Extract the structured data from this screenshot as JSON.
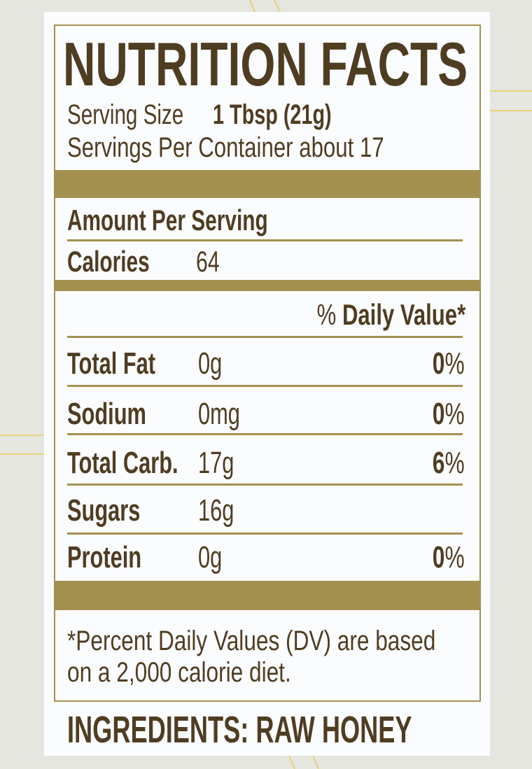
{
  "colors": {
    "text": "#4f3d22",
    "accent": "#a39050",
    "background": "#e6e6e0",
    "panel": "#fbfcfe",
    "decor_lines": "#e8d17a"
  },
  "title": "NUTRITION FACTS",
  "serving": {
    "size_label": "Serving Size",
    "size_value": "1 Tbsp (21g)",
    "per_container": "Servings Per Container about 17"
  },
  "amount_per_serving": "Amount Per Serving",
  "calories": {
    "label": "Calories",
    "value": "64"
  },
  "daily_value_header": {
    "percent": "%",
    "label": "Daily Value*"
  },
  "nutrients": [
    {
      "label": "Total Fat",
      "amount": "0g",
      "dv": "0",
      "pct": "%"
    },
    {
      "label": "Sodium",
      "amount": "0mg",
      "dv": "0",
      "pct": "%"
    },
    {
      "label": "Total Carb.",
      "amount": "17g",
      "dv": "6",
      "pct": "%"
    },
    {
      "label": "Sugars",
      "amount": "16g"
    },
    {
      "label": "Protein",
      "amount": "0g",
      "dv": "0",
      "pct": "%"
    }
  ],
  "footnote": {
    "line1": "*Percent Daily Values (DV) are based",
    "line2": "on a 2,000 calorie diet."
  },
  "ingredients": "INGREDIENTS: RAW HONEY"
}
